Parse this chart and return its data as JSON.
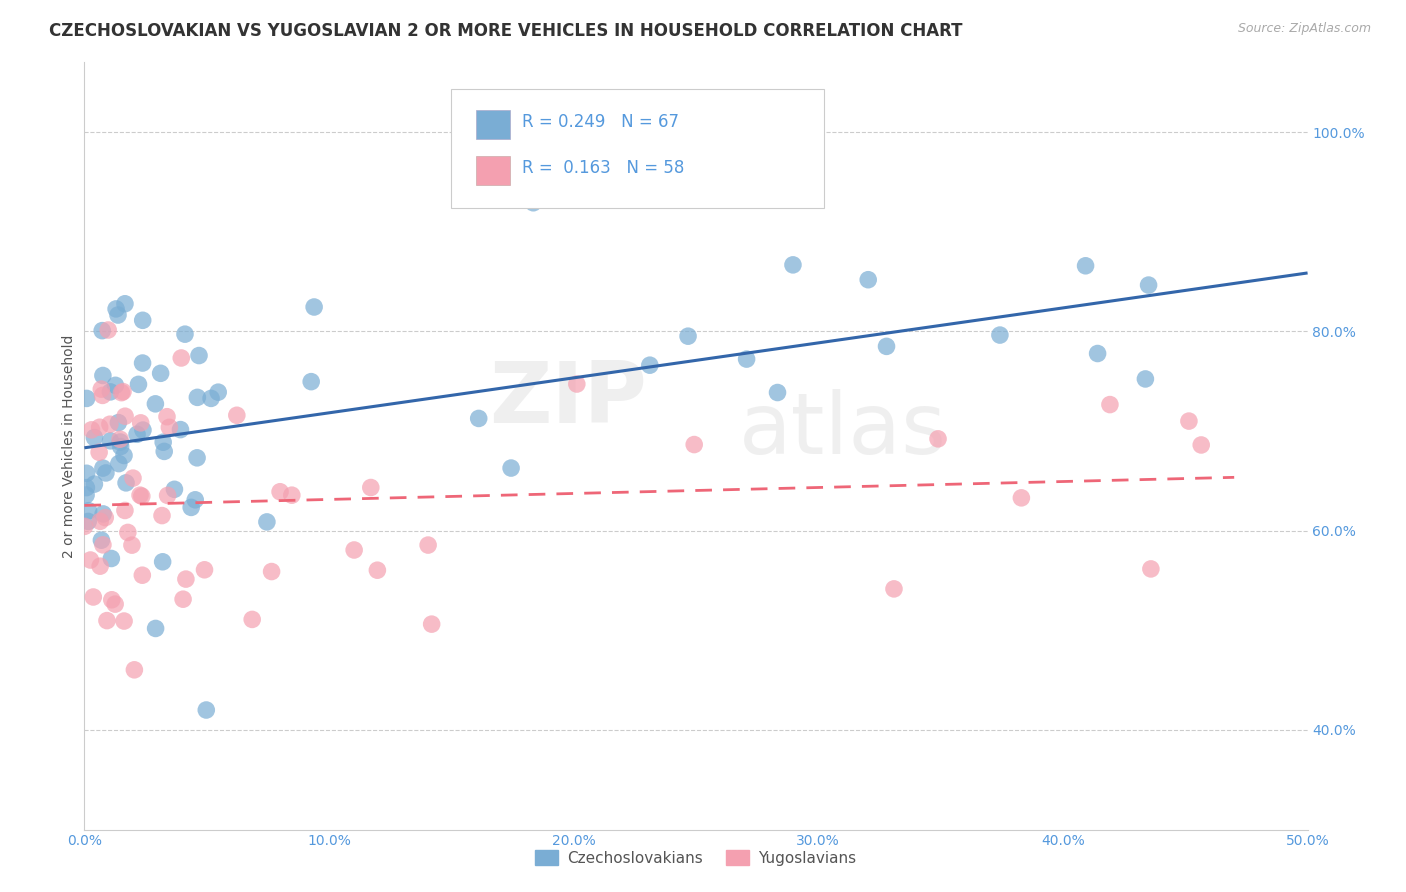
{
  "title": "CZECHOSLOVAKIAN VS YUGOSLAVIAN 2 OR MORE VEHICLES IN HOUSEHOLD CORRELATION CHART",
  "source": "Source: ZipAtlas.com",
  "ylabel": "2 or more Vehicles in Household",
  "xlim": [
    0.0,
    0.5
  ],
  "ylim": [
    0.3,
    1.07
  ],
  "xticks": [
    0.0,
    0.1,
    0.2,
    0.3,
    0.4,
    0.5
  ],
  "yticks_right": [
    0.4,
    0.6,
    0.8,
    1.0
  ],
  "ytick_labels_right": [
    "40.0%",
    "60.0%",
    "80.0%",
    "100.0%"
  ],
  "scatter_color_czech": "#7aadd4",
  "scatter_color_yugo": "#f4a0b0",
  "line_color_czech": "#3366aa",
  "line_color_yugo": "#ee6677",
  "ytick_color": "#5599dd",
  "xtick_color": "#5599dd",
  "title_fontsize": 12,
  "axis_label_fontsize": 10,
  "tick_fontsize": 10,
  "legend_r_czech": "R = 0.249",
  "legend_n_czech": "N = 67",
  "legend_r_yugo": "R =  0.163",
  "legend_n_yugo": "N = 58",
  "watermark_zip": "ZIP",
  "watermark_atlas": "atlas"
}
